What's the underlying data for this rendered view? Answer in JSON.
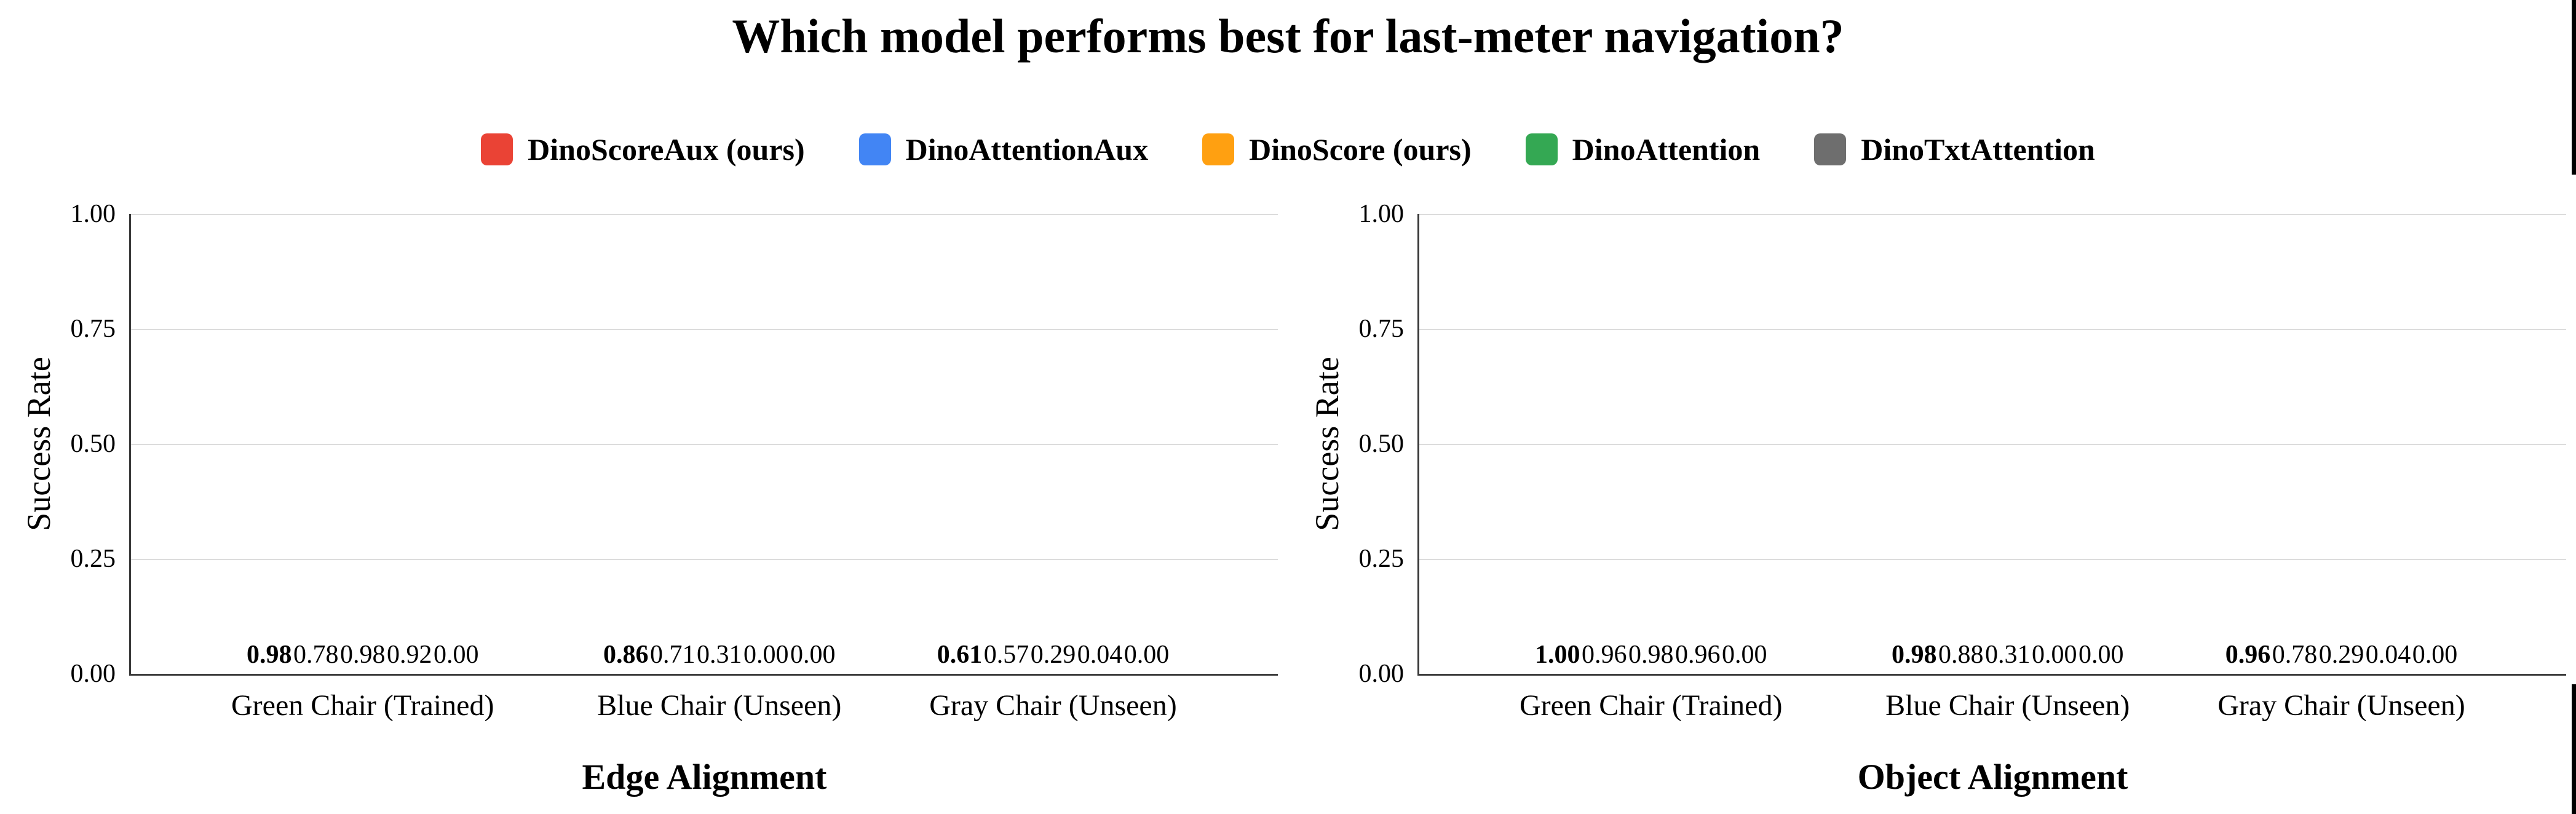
{
  "title": "Which model performs best for last-meter navigation?",
  "colors": {
    "red": "#EA4335",
    "blue": "#4285F4",
    "orange": "#FFA011",
    "green": "#34A853",
    "gray": "#6E6E6E",
    "gridline": "#dcdcdc",
    "axis": "#3a3a3a"
  },
  "legend": {
    "items": [
      {
        "label": "DinoScoreAux (ours)",
        "color": "#EA4335"
      },
      {
        "label": "DinoAttentionAux",
        "color": "#4285F4"
      },
      {
        "label": "DinoScore (ours)",
        "color": "#FFA011"
      },
      {
        "label": "DinoAttention",
        "color": "#34A853"
      },
      {
        "label": "DinoTxtAttention",
        "color": "#6E6E6E"
      }
    ]
  },
  "emphasized_series": "DinoScoreAux (ours)",
  "chart_data": [
    {
      "type": "bar",
      "title": "",
      "xlabel": "Edge Alignment",
      "ylabel": "Success Rate",
      "categories": [
        "Green Chair (Trained)",
        "Blue Chair (Unseen)",
        "Gray Chair (Unseen)"
      ],
      "series": [
        {
          "name": "DinoScoreAux (ours)",
          "color": "#EA4335",
          "values": [
            0.98,
            0.86,
            0.61
          ]
        },
        {
          "name": "DinoAttentionAux",
          "color": "#4285F4",
          "values": [
            0.78,
            0.71,
            0.57
          ]
        },
        {
          "name": "DinoScore (ours)",
          "color": "#FFA011",
          "values": [
            0.98,
            0.31,
            0.29
          ]
        },
        {
          "name": "DinoAttention",
          "color": "#34A853",
          "values": [
            0.92,
            0.0,
            0.04
          ]
        },
        {
          "name": "DinoTxtAttention",
          "color": "#6E6E6E",
          "values": [
            0.0,
            0.0,
            0.0
          ]
        }
      ],
      "yticks": [
        "0.00",
        "0.25",
        "0.50",
        "0.75",
        "1.00"
      ],
      "ylim": [
        0,
        1
      ],
      "grid": true,
      "value_labels": true,
      "legend_position": "top"
    },
    {
      "type": "bar",
      "title": "",
      "xlabel": "Object Alignment",
      "ylabel": "Success Rate",
      "categories": [
        "Green Chair (Trained)",
        "Blue Chair (Unseen)",
        "Gray Chair (Unseen)"
      ],
      "series": [
        {
          "name": "DinoScoreAux (ours)",
          "color": "#EA4335",
          "values": [
            1.0,
            0.98,
            0.96
          ]
        },
        {
          "name": "DinoAttentionAux",
          "color": "#4285F4",
          "values": [
            0.96,
            0.88,
            0.78
          ]
        },
        {
          "name": "DinoScore (ours)",
          "color": "#FFA011",
          "values": [
            0.98,
            0.31,
            0.29
          ]
        },
        {
          "name": "DinoAttention",
          "color": "#34A853",
          "values": [
            0.96,
            0.0,
            0.04
          ]
        },
        {
          "name": "DinoTxtAttention",
          "color": "#6E6E6E",
          "values": [
            0.0,
            0.0,
            0.0
          ]
        }
      ],
      "yticks": [
        "0.00",
        "0.25",
        "0.50",
        "0.75",
        "1.00"
      ],
      "ylim": [
        0,
        1
      ],
      "grid": true,
      "value_labels": true,
      "legend_position": "top"
    }
  ]
}
